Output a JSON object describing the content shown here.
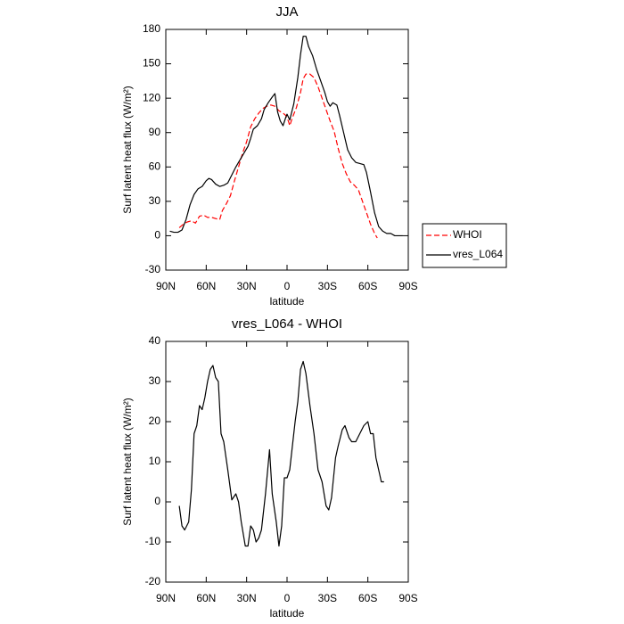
{
  "chart_data": [
    {
      "type": "line",
      "title": "JJA",
      "xlabel": "latitude",
      "ylabel": "Surf latent heat flux (W/m²)",
      "xlim": [
        90,
        -90
      ],
      "xticks": [
        {
          "value": 90,
          "label": "90N"
        },
        {
          "value": 60,
          "label": "60N"
        },
        {
          "value": 30,
          "label": "30N"
        },
        0,
        {
          "value": -30,
          "label": "30S"
        },
        {
          "value": -60,
          "label": "60S"
        },
        {
          "value": -90,
          "label": "90S"
        }
      ],
      "ylim": [
        -30,
        180
      ],
      "yticks": [
        -30,
        0,
        30,
        60,
        90,
        120,
        150,
        180
      ],
      "legend": "right",
      "series": [
        {
          "name": "WHOI",
          "color": "#ff0000",
          "dashed": true,
          "x": [
            80,
            77,
            74,
            71,
            68,
            65,
            62,
            59,
            56,
            53,
            50,
            48,
            45,
            42,
            39,
            36,
            33,
            30,
            27,
            24,
            21,
            18,
            15,
            12,
            9,
            6,
            3,
            1,
            -1,
            -2,
            -4,
            -7,
            -10,
            -12,
            -14,
            -17,
            -20,
            -23,
            -26,
            -29,
            -32,
            -35,
            -38,
            -41,
            -44,
            -47,
            -50,
            -53,
            -56,
            -59,
            -62,
            -65,
            -67
          ],
          "values": [
            7,
            10,
            12,
            13,
            11,
            17,
            18,
            16,
            16,
            15,
            14,
            22,
            28,
            35,
            48,
            60,
            72,
            82,
            95,
            102,
            107,
            111,
            113,
            114,
            113,
            109,
            107,
            105,
            100,
            96,
            103,
            112,
            125,
            137,
            141,
            141,
            138,
            130,
            120,
            110,
            100,
            91,
            76,
            63,
            54,
            47,
            44,
            40,
            30,
            20,
            10,
            2,
            -2
          ]
        },
        {
          "name": "vres_L064",
          "color": "#000000",
          "dashed": false,
          "x": [
            87,
            84,
            81,
            78,
            75,
            72,
            69,
            66,
            63,
            60,
            58,
            56,
            53,
            50,
            47,
            44,
            41,
            38,
            35,
            32,
            29,
            27,
            25,
            22,
            19,
            17,
            14,
            11,
            9,
            7,
            5,
            3,
            1,
            0,
            -2,
            -5,
            -8,
            -10,
            -12,
            -14,
            -16,
            -19,
            -22,
            -25,
            -28,
            -30,
            -32,
            -34,
            -37,
            -39,
            -42,
            -45,
            -48,
            -51,
            -54,
            -57,
            -59,
            -62,
            -65,
            -68,
            -71,
            -74,
            -77,
            -80,
            -83,
            -86
          ],
          "values": [
            4,
            3,
            3,
            5,
            14,
            27,
            36,
            41,
            43,
            48,
            50,
            49,
            45,
            43,
            44,
            46,
            53,
            60,
            66,
            72,
            78,
            85,
            93,
            96,
            102,
            110,
            116,
            121,
            124,
            108,
            100,
            96,
            103,
            106,
            101,
            115,
            138,
            158,
            174,
            174,
            165,
            157,
            145,
            135,
            125,
            117,
            113,
            116,
            114,
            105,
            90,
            75,
            68,
            64,
            63,
            62,
            55,
            38,
            20,
            8,
            4,
            2,
            2,
            0,
            0,
            0
          ]
        }
      ]
    },
    {
      "type": "line",
      "title": "vres_L064 - WHOI",
      "xlabel": "latitude",
      "ylabel": "Surf latent heat flux (W/m²)",
      "xlim": [
        90,
        -90
      ],
      "xticks": [
        {
          "value": 90,
          "label": "90N"
        },
        {
          "value": 60,
          "label": "60N"
        },
        {
          "value": 30,
          "label": "30N"
        },
        0,
        {
          "value": -30,
          "label": "30S"
        },
        {
          "value": -60,
          "label": "60S"
        },
        {
          "value": -90,
          "label": "90S"
        }
      ],
      "ylim": [
        -20,
        40
      ],
      "yticks": [
        -20,
        -10,
        0,
        10,
        20,
        30,
        40
      ],
      "series": [
        {
          "color": "#000000",
          "dashed": false,
          "x": [
            80,
            78,
            76,
            73,
            71,
            69,
            67,
            65,
            63,
            61,
            59,
            57,
            55,
            53,
            51,
            49,
            47,
            44,
            41,
            38,
            36,
            34,
            31,
            29,
            27,
            25,
            23,
            21,
            19,
            16,
            13,
            11,
            8,
            6,
            4,
            2,
            0,
            -2,
            -4,
            -6,
            -8,
            -10,
            -12,
            -14,
            -17,
            -20,
            -23,
            -26,
            -29,
            -31,
            -33,
            -36,
            -38,
            -41,
            -43,
            -46,
            -48,
            -51,
            -54,
            -57,
            -60,
            -62,
            -64,
            -66,
            -68,
            -70,
            -72
          ],
          "values": [
            -1,
            -6,
            -7,
            -5,
            3,
            17,
            19,
            24,
            23,
            26,
            30,
            33,
            34,
            31,
            30,
            17,
            15,
            8,
            0.5,
            2,
            0,
            -5,
            -11,
            -11,
            -6,
            -7,
            -10,
            -9,
            -7,
            2,
            13,
            2,
            -5,
            -11,
            -6,
            6,
            6,
            8,
            14,
            20,
            25,
            33,
            35,
            32,
            24,
            17,
            8,
            5,
            -1,
            -2,
            1,
            11,
            14,
            18,
            19,
            16,
            15,
            15,
            17,
            19,
            20,
            17,
            17,
            11,
            8,
            5,
            5
          ]
        }
      ]
    }
  ]
}
